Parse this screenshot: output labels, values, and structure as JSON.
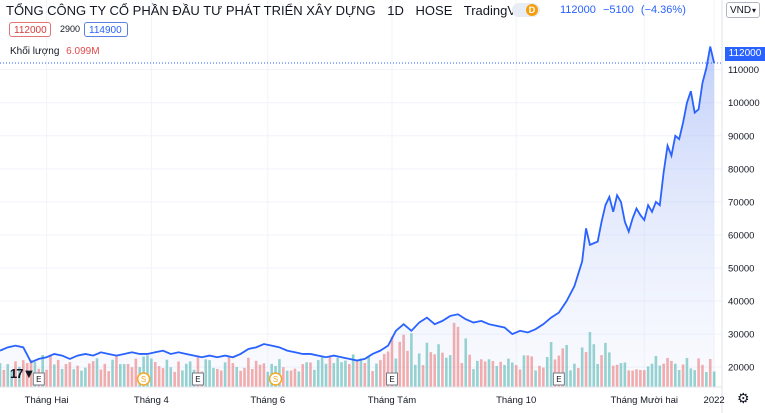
{
  "header": {
    "company": "TỔNG CÔNG TY CỔ PHẦN ĐẦU TƯ PHÁT TRIỂN XÂY DỰNG",
    "interval": "1D",
    "exchange": "HOSE",
    "source": "TradingView",
    "badge_letter": "D",
    "last_price": "112000",
    "change": "−5100",
    "change_pct": "(−4.36%)",
    "currency": "VND"
  },
  "ohlc": {
    "low": "112000",
    "spread": "2900",
    "high": "114900"
  },
  "volume": {
    "label": "Khối lượng",
    "value": "6.099M"
  },
  "price_tag": "112000",
  "colors": {
    "line": "#2962ff",
    "area_top": "#8fa8f5",
    "vol_up": "#26a69a",
    "vol_down": "#ef5350",
    "price_tag_bg": "#2962ff"
  },
  "icons": {
    "settings": "gear-icon",
    "logo": "tradingview-logo-icon"
  },
  "chart_data": {
    "type": "line",
    "y_axis": {
      "range": [
        14000,
        122000
      ],
      "ticks": [
        20000,
        30000,
        40000,
        50000,
        60000,
        70000,
        80000,
        90000,
        100000,
        110000
      ]
    },
    "x_axis": {
      "range": [
        0,
        185
      ],
      "ticks": [
        {
          "label": "Tháng Hai",
          "pos": 12
        },
        {
          "label": "Tháng 4",
          "pos": 39
        },
        {
          "label": "Tháng 6",
          "pos": 69
        },
        {
          "label": "Tháng Tám",
          "pos": 101
        },
        {
          "label": "Tháng 10",
          "pos": 133
        },
        {
          "label": "Tháng Mười hai",
          "pos": 166
        },
        {
          "label": "2022",
          "pos": 184
        }
      ]
    },
    "price_line": [
      [
        0,
        25000
      ],
      [
        2,
        26000
      ],
      [
        4,
        26500
      ],
      [
        6,
        26000
      ],
      [
        8,
        21500
      ],
      [
        10,
        22500
      ],
      [
        12,
        23000
      ],
      [
        14,
        24000
      ],
      [
        16,
        23500
      ],
      [
        18,
        22500
      ],
      [
        20,
        23500
      ],
      [
        22,
        24000
      ],
      [
        24,
        23500
      ],
      [
        26,
        24500
      ],
      [
        28,
        24000
      ],
      [
        30,
        23500
      ],
      [
        32,
        24000
      ],
      [
        34,
        24500
      ],
      [
        36,
        24000
      ],
      [
        38,
        24000
      ],
      [
        40,
        24500
      ],
      [
        42,
        25000
      ],
      [
        44,
        24000
      ],
      [
        46,
        24500
      ],
      [
        48,
        24000
      ],
      [
        50,
        23500
      ],
      [
        52,
        23000
      ],
      [
        54,
        23500
      ],
      [
        56,
        23000
      ],
      [
        58,
        23500
      ],
      [
        60,
        23000
      ],
      [
        62,
        24000
      ],
      [
        64,
        25500
      ],
      [
        66,
        26000
      ],
      [
        68,
        27000
      ],
      [
        70,
        26500
      ],
      [
        72,
        26000
      ],
      [
        74,
        25000
      ],
      [
        76,
        24500
      ],
      [
        78,
        24000
      ],
      [
        80,
        24000
      ],
      [
        82,
        23500
      ],
      [
        84,
        23000
      ],
      [
        86,
        23500
      ],
      [
        88,
        23000
      ],
      [
        90,
        22500
      ],
      [
        92,
        22000
      ],
      [
        94,
        22500
      ],
      [
        96,
        24000
      ],
      [
        98,
        25000
      ],
      [
        100,
        26500
      ],
      [
        102,
        31000
      ],
      [
        104,
        33000
      ],
      [
        106,
        31000
      ],
      [
        108,
        33500
      ],
      [
        110,
        35000
      ],
      [
        112,
        33000
      ],
      [
        114,
        34000
      ],
      [
        116,
        35500
      ],
      [
        118,
        36000
      ],
      [
        120,
        34500
      ],
      [
        122,
        33500
      ],
      [
        124,
        34000
      ],
      [
        126,
        33000
      ],
      [
        128,
        32500
      ],
      [
        130,
        32000
      ],
      [
        132,
        30000
      ],
      [
        134,
        31000
      ],
      [
        136,
        30500
      ],
      [
        138,
        31500
      ],
      [
        140,
        33000
      ],
      [
        142,
        35000
      ],
      [
        144,
        36500
      ],
      [
        146,
        40000
      ],
      [
        148,
        44500
      ],
      [
        150,
        52000
      ],
      [
        151,
        62000
      ],
      [
        152,
        57000
      ],
      [
        154,
        58000
      ],
      [
        155,
        64000
      ],
      [
        156,
        69000
      ],
      [
        157,
        71500
      ],
      [
        158,
        67000
      ],
      [
        159,
        72000
      ],
      [
        160,
        70000
      ],
      [
        161,
        64000
      ],
      [
        162,
        61000
      ],
      [
        163,
        65000
      ],
      [
        164,
        68000
      ],
      [
        165,
        66000
      ],
      [
        166,
        64500
      ],
      [
        167,
        69000
      ],
      [
        168,
        67000
      ],
      [
        169,
        70000
      ],
      [
        170,
        69000
      ],
      [
        171,
        79000
      ],
      [
        172,
        87000
      ],
      [
        173,
        84000
      ],
      [
        174,
        90000
      ],
      [
        175,
        89000
      ],
      [
        176,
        94000
      ],
      [
        177,
        100000
      ],
      [
        178,
        103500
      ],
      [
        179,
        97000
      ],
      [
        180,
        98000
      ],
      [
        181,
        106000
      ],
      [
        182,
        110500
      ],
      [
        183,
        117000
      ],
      [
        184,
        112000
      ]
    ],
    "volume_bars": [],
    "events": [
      {
        "pos": 10,
        "label": "E"
      },
      {
        "pos": 37,
        "label": "S"
      },
      {
        "pos": 51,
        "label": "E"
      },
      {
        "pos": 71,
        "label": "S"
      },
      {
        "pos": 101,
        "label": "E"
      },
      {
        "pos": 144,
        "label": "E"
      }
    ]
  }
}
